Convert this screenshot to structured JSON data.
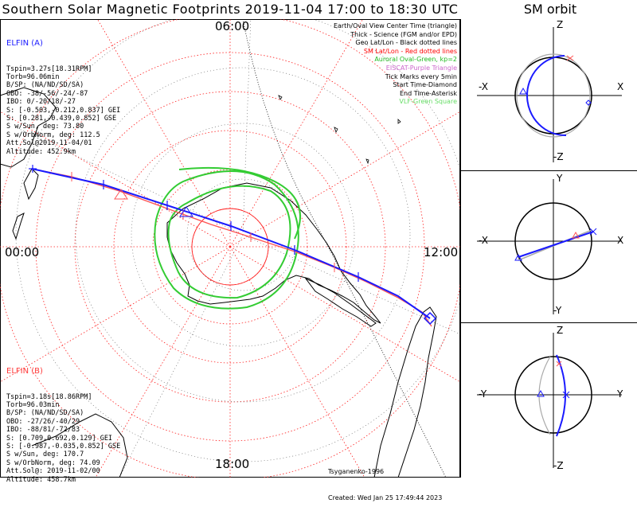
{
  "title": "Southern Solar Magnetic Footprints 2019-11-04 17:00 to 18:30 UTC",
  "orbit_title": "SM orbit",
  "hour_labels": {
    "top": "06:00",
    "left": "00:00",
    "right": "12:00",
    "bottom": "18:00"
  },
  "elfin_a": {
    "name": "ELFIN (A)",
    "color": "#1a1aff",
    "lines": [
      "Tspin=3.27s[18.31RPM]",
      "Torb=96.06min",
      "B/SP: (NA/ND/SD/SA)",
      "OBO: -38/-56/-24/-87",
      "IBO: 0/-20/18/-27",
      "S: [-0.503,-0.212,0.837] GEI",
      "S: [0.281,-0.439,0.852] GSE",
      "S w/Sun, deg: 73.80",
      "S w/OrbNorm, deg: 112.5",
      "Att.Sol@2019-11-04/01",
      "Altitude: 452.9km"
    ]
  },
  "elfin_b": {
    "name": "ELFIN (B)",
    "color": "#ff3a3a",
    "lines": [
      "Tspin=3.18s[18.86RPM]",
      "Torb=96.03min",
      "B/SP: (NA/ND/SD/SA)",
      "OBO: -27/26/-40/29",
      "IBO: -88/81/-72/83",
      "S: [0.709,0.692,0.129] GEI",
      "S: [-0.987,-0.035,0.852] GSE",
      "S w/Sun, deg: 170.7",
      "S w/OrbNorm, deg: 74.09",
      "Att.Sol@: 2019-11-02/00",
      "Altitude: 458.7km"
    ]
  },
  "legend": [
    {
      "text": "Earth/Oval View Center Time (triangle)",
      "color": "#000000"
    },
    {
      "text": "Thick - Science (FGM and/or EPD)",
      "color": "#000000"
    },
    {
      "text": "Geo Lat/Lon - Black dotted lines",
      "color": "#000000"
    },
    {
      "text": "SM Lat/Lon - Red dotted lines",
      "color": "#ff0000"
    },
    {
      "text": "Auroral Oval-Green, kp=2",
      "color": "#22bb22"
    },
    {
      "text": "EISCAT-Purple Triangle",
      "color": "#cc66cc"
    },
    {
      "text": "Tick Marks every 5min",
      "color": "#000000"
    },
    {
      "text": "Start Time-Diamond",
      "color": "#000000"
    },
    {
      "text": "End Time-Asterisk",
      "color": "#000000"
    },
    {
      "text": "VLF-Green Square",
      "color": "#66dd66"
    }
  ],
  "credits": [
    "Tsyganenko-1996",
    "Created: Wed Jan 25 17:49:44 2023"
  ],
  "panels": [
    {
      "top": "Z",
      "bottom": "-Z",
      "left": "-X",
      "right": "X"
    },
    {
      "top": "Y",
      "bottom": "-Y",
      "left": "-X",
      "right": "X"
    },
    {
      "top": "Z",
      "bottom": "-Z",
      "left": "-Y",
      "right": "Y"
    }
  ],
  "colors": {
    "a_track": "#1a1aff",
    "b_track": "#ff5555",
    "oval": "#33cc33",
    "sm_grid": "#ff0000",
    "geo_grid": "#000000",
    "orbit_gray": "#a0a0a0"
  }
}
